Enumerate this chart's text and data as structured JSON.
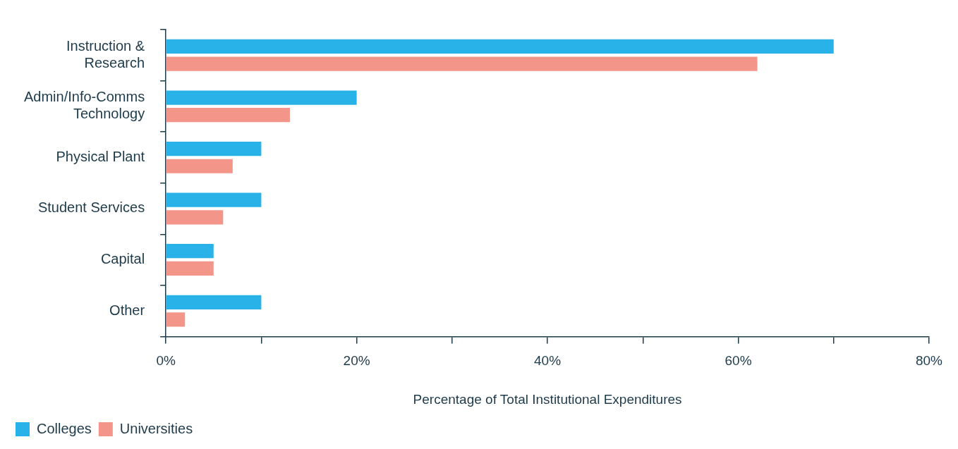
{
  "chart_data": {
    "type": "bar",
    "orientation": "horizontal",
    "xlabel": "Percentage of Total Institutional Expenditures",
    "categories": [
      "Instruction & Research",
      "Admin/Info-Comms Technology",
      "Physical Plant",
      "Student Services",
      "Capital",
      "Other"
    ],
    "series": [
      {
        "name": "Colleges",
        "color": "#29b2e8",
        "values": [
          70,
          20,
          10,
          10,
          5,
          10
        ]
      },
      {
        "name": "Universities",
        "color": "#f4958a",
        "values": [
          62,
          13,
          7,
          6,
          5,
          2
        ]
      }
    ],
    "xlim": [
      0,
      80
    ],
    "xticks": [
      {
        "value": 0,
        "label": "0%"
      },
      {
        "value": 10,
        "label": null
      },
      {
        "value": 20,
        "label": "20%"
      },
      {
        "value": 30,
        "label": null
      },
      {
        "value": 40,
        "label": "40%"
      },
      {
        "value": 50,
        "label": null
      },
      {
        "value": 60,
        "label": "60%"
      },
      {
        "value": 70,
        "label": null
      },
      {
        "value": 80,
        "label": "80%"
      }
    ],
    "grid": false,
    "legend": "bottom left"
  }
}
